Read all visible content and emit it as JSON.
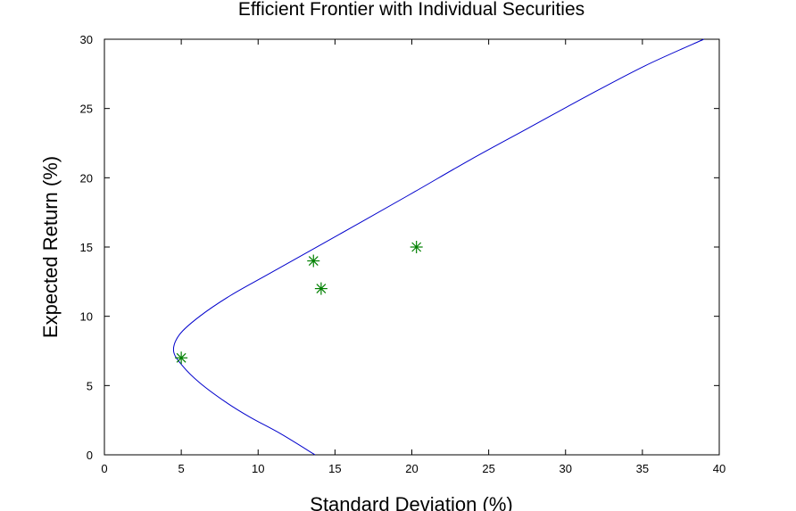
{
  "chart_data": {
    "type": "scatter",
    "title": "Efficient Frontier with Individual Securities",
    "xlabel": "Standard Deviation (%)",
    "ylabel": "Expected Return (%)",
    "xlim": [
      0,
      40
    ],
    "ylim": [
      0,
      30
    ],
    "xticks": [
      "0",
      "5",
      "10",
      "15",
      "20",
      "25",
      "30",
      "35",
      "40"
    ],
    "yticks": [
      "0",
      "5",
      "10",
      "15",
      "20",
      "25",
      "30"
    ],
    "grid": false,
    "frontier": {
      "color": "#0000cc",
      "min_variance_point": {
        "x": 4.5,
        "y": 7.5
      },
      "points": [
        {
          "x": 13.7,
          "y": 0
        },
        {
          "x": 11.5,
          "y": 1.5
        },
        {
          "x": 9.5,
          "y": 2.7
        },
        {
          "x": 7.9,
          "y": 3.8
        },
        {
          "x": 6.2,
          "y": 5.2
        },
        {
          "x": 5.1,
          "y": 6.4
        },
        {
          "x": 4.5,
          "y": 7.5
        },
        {
          "x": 4.9,
          "y": 8.7
        },
        {
          "x": 6.2,
          "y": 10.0
        },
        {
          "x": 8.2,
          "y": 11.5
        },
        {
          "x": 10.6,
          "y": 13.0
        },
        {
          "x": 13.5,
          "y": 14.8
        },
        {
          "x": 16.7,
          "y": 16.8
        },
        {
          "x": 20.2,
          "y": 19.0
        },
        {
          "x": 23.8,
          "y": 21.3
        },
        {
          "x": 27.6,
          "y": 23.6
        },
        {
          "x": 31.4,
          "y": 25.9
        },
        {
          "x": 35.2,
          "y": 28.1
        },
        {
          "x": 39.0,
          "y": 30.0
        }
      ]
    },
    "securities": {
      "color": "#008000",
      "marker": "asterisk",
      "points": [
        {
          "x": 5.0,
          "y": 7.0
        },
        {
          "x": 13.6,
          "y": 14.0
        },
        {
          "x": 14.1,
          "y": 12.0
        },
        {
          "x": 20.3,
          "y": 15.0
        }
      ]
    }
  }
}
